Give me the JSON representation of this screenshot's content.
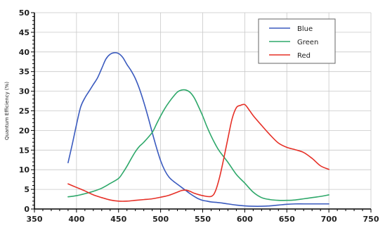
{
  "chart_data": {
    "type": "line",
    "title": "",
    "xlabel": "",
    "ylabel": "Quantum Efficiency (%)",
    "xlim": [
      350,
      750
    ],
    "ylim": [
      0,
      50
    ],
    "xticks": [
      350,
      400,
      450,
      500,
      550,
      600,
      650,
      700,
      750
    ],
    "yticks": [
      0,
      5,
      10,
      15,
      20,
      25,
      30,
      35,
      40,
      45,
      50
    ],
    "grid": true,
    "legend_position": "top-right",
    "series": [
      {
        "name": "Blue",
        "color": "#3b5bbf",
        "x": [
          390,
          395,
          400,
          405,
          410,
          415,
          420,
          425,
          430,
          435,
          440,
          445,
          450,
          455,
          460,
          465,
          470,
          475,
          480,
          485,
          490,
          495,
          500,
          505,
          510,
          515,
          520,
          525,
          530,
          535,
          540,
          545,
          550,
          555,
          560,
          570,
          580,
          590,
          600,
          610,
          620,
          630,
          640,
          650,
          660,
          670,
          680,
          690,
          700
        ],
        "y": [
          11.8,
          16.5,
          21.5,
          26.0,
          28.3,
          30.0,
          31.7,
          33.4,
          35.8,
          38.2,
          39.4,
          39.8,
          39.6,
          38.6,
          36.8,
          35.2,
          33.2,
          30.5,
          27.2,
          23.5,
          19.5,
          15.7,
          12.3,
          9.8,
          8.1,
          7.1,
          6.3,
          5.5,
          4.7,
          3.9,
          3.2,
          2.6,
          2.2,
          2.0,
          1.8,
          1.6,
          1.3,
          1.0,
          0.8,
          0.7,
          0.7,
          0.8,
          1.0,
          1.2,
          1.3,
          1.3,
          1.3,
          1.3,
          1.3
        ]
      },
      {
        "name": "Green",
        "color": "#2ea86a",
        "x": [
          390,
          400,
          410,
          420,
          430,
          440,
          450,
          455,
          460,
          465,
          470,
          475,
          480,
          490,
          495,
          500,
          505,
          510,
          515,
          520,
          525,
          530,
          535,
          540,
          545,
          550,
          555,
          560,
          565,
          570,
          580,
          590,
          600,
          610,
          620,
          630,
          640,
          650,
          660,
          670,
          680,
          690,
          700
        ],
        "y": [
          3.1,
          3.4,
          3.9,
          4.5,
          5.3,
          6.5,
          7.8,
          9.2,
          10.9,
          12.8,
          14.6,
          16.0,
          17.0,
          19.5,
          21.6,
          23.7,
          25.6,
          27.2,
          28.6,
          29.8,
          30.3,
          30.3,
          29.7,
          28.3,
          26.1,
          23.7,
          21.0,
          18.6,
          16.5,
          14.7,
          11.9,
          8.8,
          6.6,
          4.3,
          2.9,
          2.4,
          2.2,
          2.2,
          2.3,
          2.6,
          2.9,
          3.2,
          3.6
        ]
      },
      {
        "name": "Red",
        "color": "#e63027",
        "x": [
          390,
          400,
          410,
          420,
          430,
          440,
          450,
          460,
          470,
          480,
          490,
          500,
          510,
          520,
          525,
          530,
          535,
          540,
          550,
          560,
          565,
          570,
          575,
          580,
          585,
          590,
          595,
          600,
          605,
          610,
          620,
          630,
          640,
          650,
          660,
          670,
          680,
          690,
          700
        ],
        "y": [
          6.4,
          5.5,
          4.6,
          3.6,
          2.9,
          2.3,
          2.0,
          2.0,
          2.2,
          2.4,
          2.6,
          3.0,
          3.5,
          4.3,
          4.7,
          4.8,
          4.5,
          4.0,
          3.4,
          3.2,
          4.5,
          8.0,
          12.8,
          18.0,
          23.0,
          25.8,
          26.4,
          26.6,
          25.3,
          23.8,
          21.3,
          18.9,
          16.8,
          15.7,
          15.1,
          14.4,
          12.9,
          11.0,
          10.1
        ]
      }
    ]
  }
}
